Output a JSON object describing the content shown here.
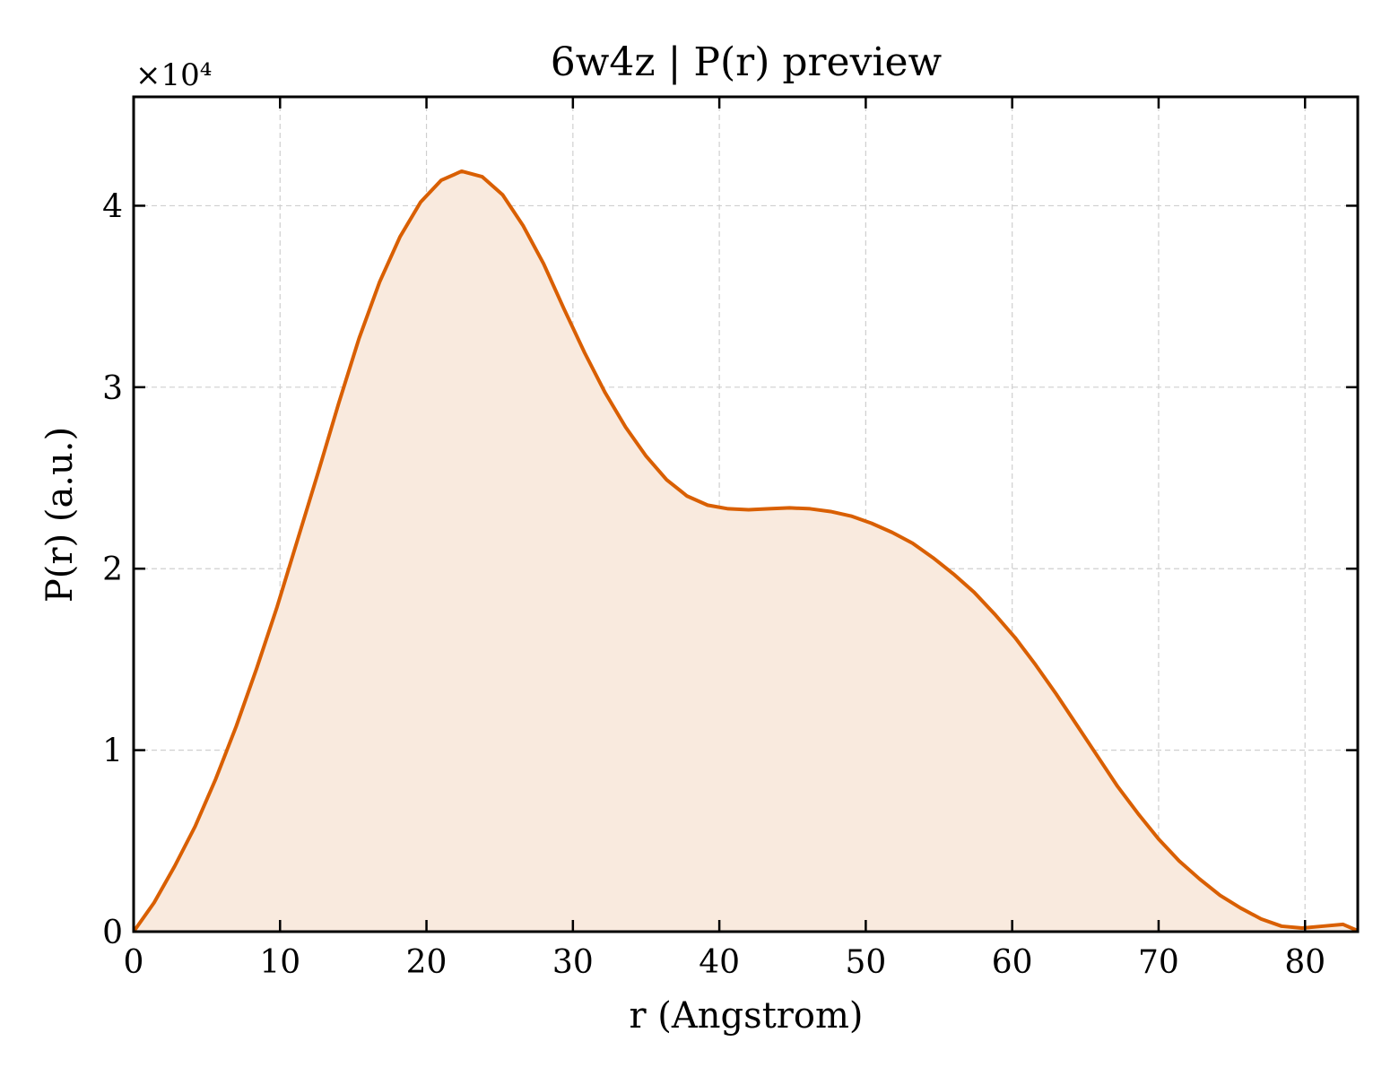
{
  "chart_data": {
    "type": "area",
    "title": "6w4z | P(r) preview",
    "xlabel": "r (Angstrom)",
    "ylabel": "P(r) (a.u.)",
    "y_multiplier_label": "×10⁴",
    "y_multiplier": 10000,
    "xlim": [
      0,
      83.6
    ],
    "ylim": [
      0,
      4.6
    ],
    "xticks": [
      0,
      10,
      20,
      30,
      40,
      50,
      60,
      70,
      80
    ],
    "yticks": [
      0,
      1,
      2,
      3,
      4
    ],
    "grid": true,
    "line_color": "#d95f02",
    "fill_color": "#f9eade",
    "x": [
      0,
      1.4,
      2.8,
      4.2,
      5.6,
      7.0,
      8.4,
      9.8,
      11.2,
      12.6,
      14.0,
      15.4,
      16.8,
      18.2,
      19.6,
      21.0,
      22.4,
      23.8,
      25.2,
      26.6,
      28.0,
      29.4,
      30.8,
      32.2,
      33.6,
      35.0,
      36.4,
      37.8,
      39.2,
      40.6,
      42.0,
      43.4,
      44.8,
      46.2,
      47.6,
      49.0,
      50.4,
      51.8,
      53.2,
      54.6,
      56.0,
      57.4,
      58.8,
      60.2,
      61.6,
      63.0,
      64.4,
      65.8,
      67.2,
      68.6,
      70.0,
      71.4,
      72.8,
      74.2,
      75.6,
      77.0,
      78.4,
      79.8,
      81.2,
      82.6,
      83.6
    ],
    "y": [
      0.0,
      0.16,
      0.36,
      0.58,
      0.84,
      1.13,
      1.45,
      1.79,
      2.16,
      2.53,
      2.91,
      3.27,
      3.58,
      3.83,
      4.02,
      4.14,
      4.19,
      4.16,
      4.06,
      3.89,
      3.68,
      3.43,
      3.19,
      2.97,
      2.78,
      2.62,
      2.49,
      2.4,
      2.35,
      2.33,
      2.325,
      2.33,
      2.335,
      2.33,
      2.315,
      2.29,
      2.25,
      2.2,
      2.14,
      2.06,
      1.97,
      1.87,
      1.75,
      1.62,
      1.47,
      1.31,
      1.14,
      0.97,
      0.8,
      0.65,
      0.51,
      0.39,
      0.29,
      0.2,
      0.13,
      0.07,
      0.03,
      0.02,
      0.03,
      0.04,
      0.005
    ]
  }
}
